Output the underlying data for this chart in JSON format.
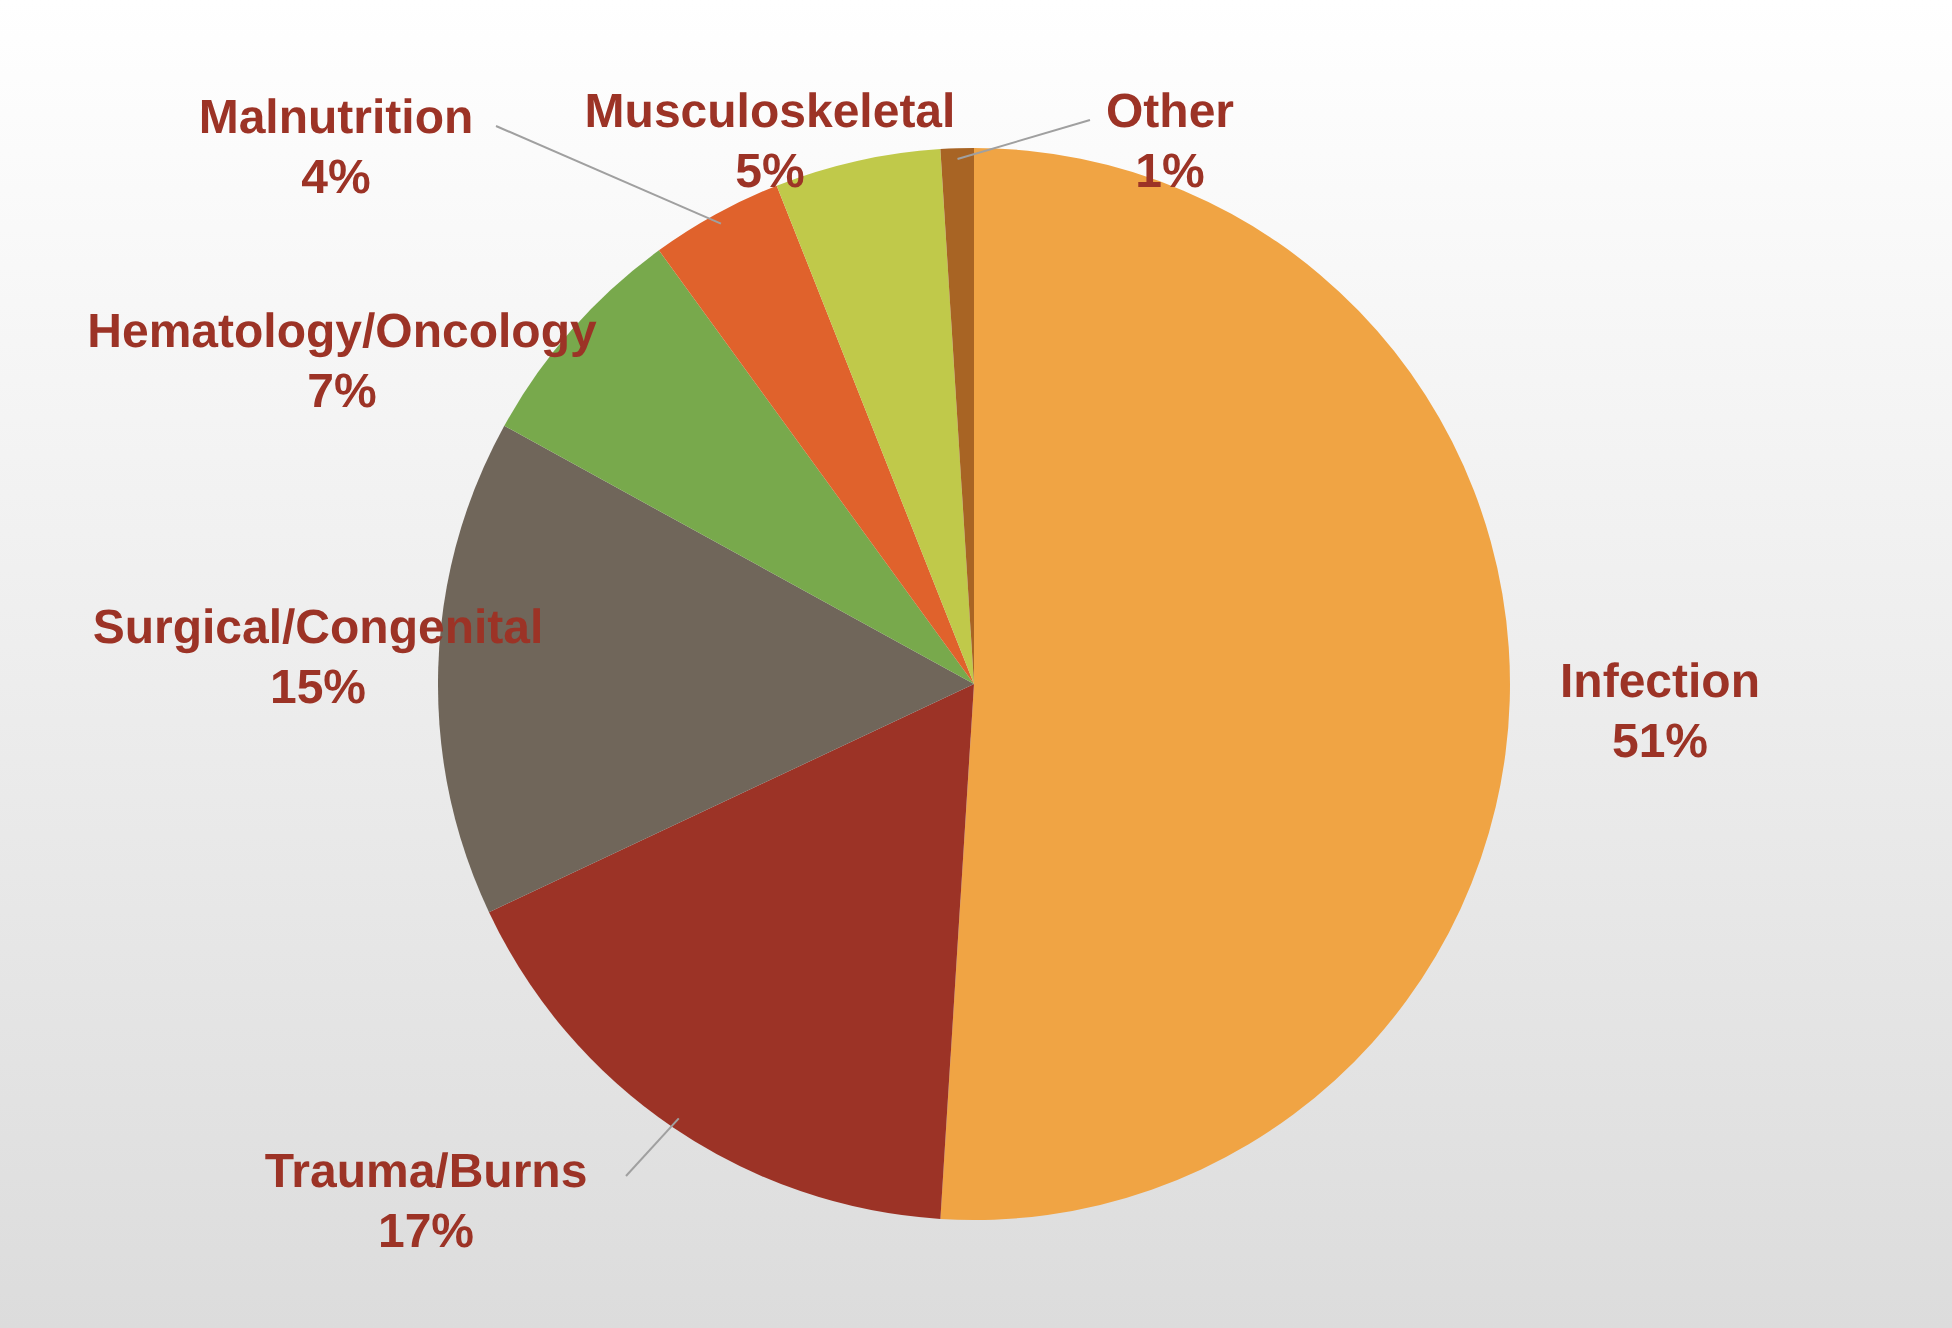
{
  "chart_data": {
    "type": "pie",
    "categories": [
      "Infection",
      "Trauma/Burns",
      "Surgical/Congenital",
      "Hematology/Oncology",
      "Malnutrition",
      "Musculoskeletal",
      "Other"
    ],
    "values": [
      51,
      17,
      15,
      7,
      4,
      5,
      1
    ],
    "colors": [
      "#f0a444",
      "#9c3326",
      "#70665a",
      "#78a94c",
      "#e0622c",
      "#c0c94a",
      "#a86424"
    ],
    "value_labels": [
      "51%",
      "17%",
      "15%",
      "7%",
      "4%",
      "5%",
      "1%"
    ],
    "legend": false
  }
}
